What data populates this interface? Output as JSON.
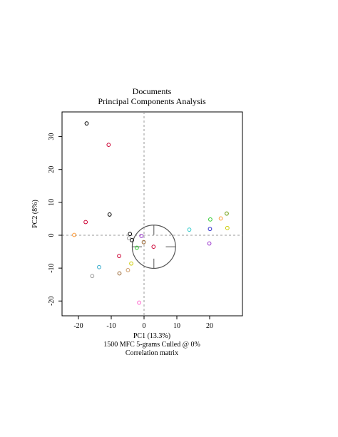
{
  "chart_data": {
    "type": "scatter",
    "title": "Documents",
    "subtitle": "Principal Components Analysis",
    "xlabel": "PC1 (13.3%)",
    "ylabel": "PC2 (8%)",
    "caption_1": "1500 MFC 5-grams Culled @ 0%",
    "caption_2": "Correlation matrix",
    "xlim": [
      -25,
      30
    ],
    "ylim": [
      -24.5,
      37.5
    ],
    "x_ticks": [
      -20,
      -10,
      0,
      10,
      20
    ],
    "y_ticks": [
      -20,
      -10,
      0,
      10,
      20,
      30
    ],
    "grid": false,
    "reference_lines": {
      "x": 0,
      "y": 0,
      "style": "dashed",
      "color": "#999999"
    },
    "loading_circle": {
      "cx": 3,
      "cy": -3.5,
      "r": 6.6,
      "crosshair": true
    },
    "points": [
      {
        "x": -17.5,
        "y": 34,
        "color": "#000000"
      },
      {
        "x": -10.8,
        "y": 27.5,
        "color": "#cc0033"
      },
      {
        "x": -10.5,
        "y": 6.3,
        "color": "#000000"
      },
      {
        "x": -17.8,
        "y": 4,
        "color": "#cc0033"
      },
      {
        "x": -21.3,
        "y": 0.1,
        "color": "#ff9933"
      },
      {
        "x": -4.3,
        "y": 0.4,
        "color": "#000000"
      },
      {
        "x": -4.6,
        "y": -0.9,
        "color": "#999999"
      },
      {
        "x": -3.7,
        "y": -1.5,
        "color": "#000000"
      },
      {
        "x": -0.8,
        "y": -0.2,
        "color": "#9933cc"
      },
      {
        "x": -0.1,
        "y": -2.1,
        "color": "#996633"
      },
      {
        "x": -2.2,
        "y": -3.8,
        "color": "#33cc33"
      },
      {
        "x": -7.6,
        "y": -6.3,
        "color": "#cc0033"
      },
      {
        "x": -3.9,
        "y": -8.6,
        "color": "#cccc00"
      },
      {
        "x": -13.7,
        "y": -9.7,
        "color": "#33aacc"
      },
      {
        "x": -4.9,
        "y": -10.6,
        "color": "#cc9966"
      },
      {
        "x": -7.5,
        "y": -11.6,
        "color": "#996633"
      },
      {
        "x": -15.8,
        "y": -12.4,
        "color": "#999999"
      },
      {
        "x": -1.5,
        "y": -20.5,
        "color": "#ff66cc"
      },
      {
        "x": 2.9,
        "y": -3.5,
        "color": "#cc0033"
      },
      {
        "x": 13.8,
        "y": 1.7,
        "color": "#33cccc"
      },
      {
        "x": 20.2,
        "y": 4.8,
        "color": "#33cc33"
      },
      {
        "x": 23.4,
        "y": 5.1,
        "color": "#ff9933"
      },
      {
        "x": 25.2,
        "y": 6.6,
        "color": "#669900"
      },
      {
        "x": 20.1,
        "y": 1.9,
        "color": "#3333cc"
      },
      {
        "x": 25.4,
        "y": 2.2,
        "color": "#cccc00"
      },
      {
        "x": 19.9,
        "y": -2.5,
        "color": "#9933cc"
      }
    ]
  }
}
